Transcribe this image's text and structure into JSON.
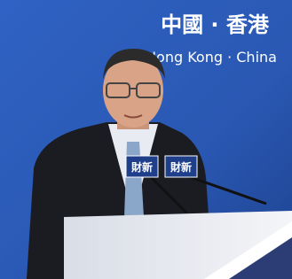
{
  "backdrop": {
    "title": "中國 · 香港",
    "subtitle": "Hong Kong · China"
  },
  "microphones": {
    "labels": [
      "財新",
      "財新"
    ]
  }
}
